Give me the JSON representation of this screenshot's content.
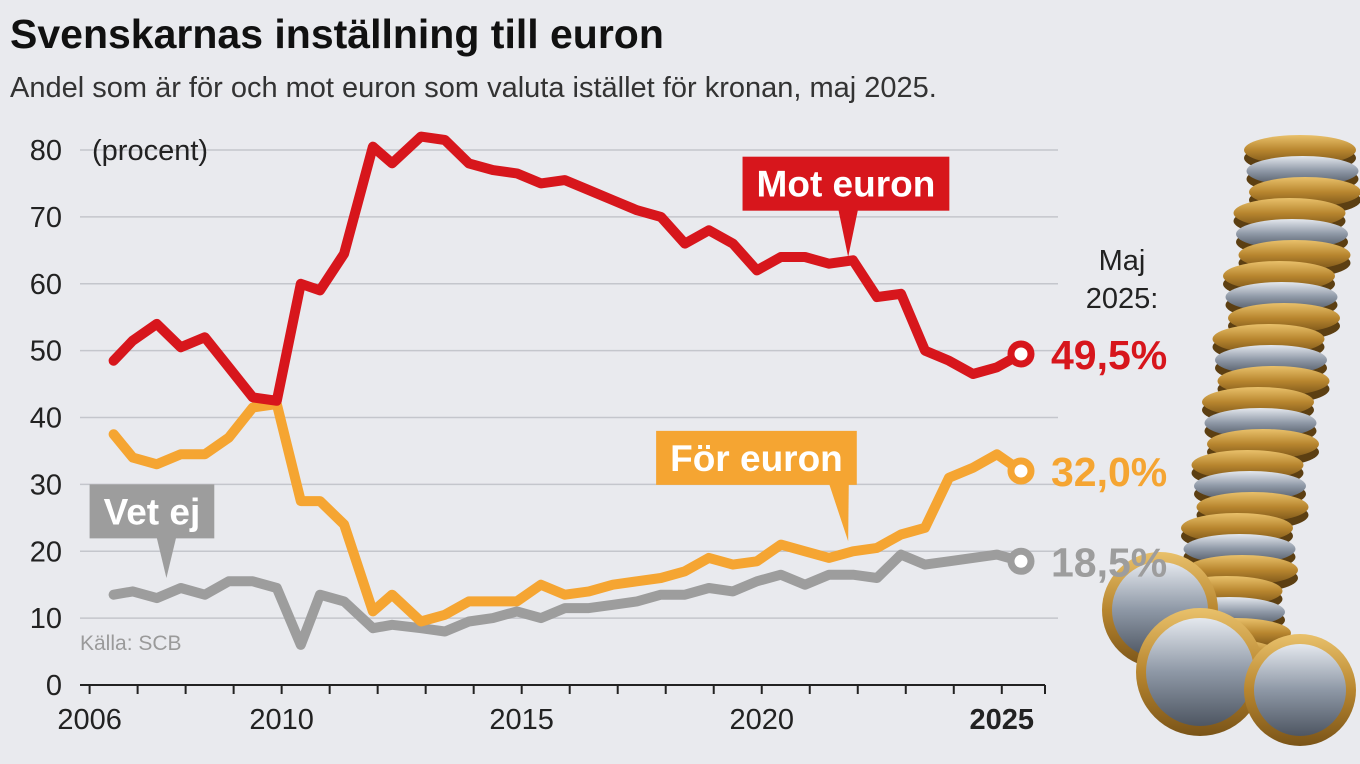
{
  "colors": {
    "mot": "#d7161c",
    "for": "#f5a532",
    "vet": "#9d9d9d",
    "background": "#e9eaee"
  },
  "maj_label": [
    "Maj",
    "2025:"
  ],
  "icons": {
    "decoration": "euro-coin-stack-icon"
  },
  "chart_data": {
    "type": "line",
    "title": "Svenskarnas inställning till euron",
    "subtitle": "Andel som är för och mot euron som valuta istället för kronan, maj 2025.",
    "ylabel": "(procent)",
    "source": "Källa: SCB",
    "ylim": [
      0,
      80
    ],
    "xlim": [
      2005.8,
      2025.9
    ],
    "yticks": [
      0,
      10,
      20,
      30,
      40,
      50,
      60,
      70,
      80
    ],
    "xticks": [
      {
        "value": 2006,
        "label": "2006",
        "bold": false
      },
      {
        "value": 2010,
        "label": "2010",
        "bold": false
      },
      {
        "value": 2015,
        "label": "2015",
        "bold": false
      },
      {
        "value": 2020,
        "label": "2020",
        "bold": false
      },
      {
        "value": 2025,
        "label": "2025",
        "bold": true
      }
    ],
    "minor_xticks": [
      2006,
      2007,
      2008,
      2009,
      2010,
      2011,
      2012,
      2013,
      2014,
      2015,
      2016,
      2017,
      2018,
      2019,
      2020,
      2021,
      2022,
      2023,
      2024,
      2025,
      2025.9
    ],
    "series": [
      {
        "name": "Mot euron",
        "key": "mot",
        "end_label": "49,5%",
        "x": [
          2006.5,
          2006.9,
          2007.4,
          2007.9,
          2008.4,
          2008.9,
          2009.4,
          2009.9,
          2010.4,
          2010.8,
          2011.3,
          2011.9,
          2012.3,
          2012.9,
          2013.4,
          2013.9,
          2014.4,
          2014.9,
          2015.4,
          2015.9,
          2016.4,
          2016.9,
          2017.4,
          2017.9,
          2018.4,
          2018.9,
          2019.4,
          2019.9,
          2020.4,
          2020.9,
          2021.4,
          2021.9,
          2022.4,
          2022.9,
          2023.4,
          2023.9,
          2024.4,
          2024.9,
          2025.4
        ],
        "values": [
          48.5,
          51.5,
          54,
          50.5,
          52,
          47.5,
          43,
          42.5,
          60,
          59,
          64.5,
          80.5,
          78,
          82,
          81.5,
          78,
          77,
          76.5,
          75,
          75.5,
          74,
          72.5,
          71,
          70,
          66,
          68,
          66,
          62,
          64,
          64,
          63,
          63.5,
          58,
          58.5,
          50,
          48.5,
          46.5,
          47.5,
          49.5
        ]
      },
      {
        "name": "För euron",
        "key": "for",
        "end_label": "32,0%",
        "x": [
          2006.5,
          2006.9,
          2007.4,
          2007.9,
          2008.4,
          2008.9,
          2009.4,
          2009.9,
          2010.4,
          2010.8,
          2011.3,
          2011.9,
          2012.3,
          2012.9,
          2013.4,
          2013.9,
          2014.4,
          2014.9,
          2015.4,
          2015.9,
          2016.4,
          2016.9,
          2017.4,
          2017.9,
          2018.4,
          2018.9,
          2019.4,
          2019.9,
          2020.4,
          2020.9,
          2021.4,
          2021.9,
          2022.4,
          2022.9,
          2023.4,
          2023.9,
          2024.4,
          2024.9,
          2025.4
        ],
        "values": [
          37.5,
          34,
          33,
          34.5,
          34.5,
          37,
          41.5,
          42,
          27.5,
          27.5,
          24,
          11,
          13.5,
          9.5,
          10.5,
          12.5,
          12.5,
          12.5,
          15,
          13.5,
          14,
          15,
          15.5,
          16,
          17,
          19,
          18,
          18.5,
          21,
          20,
          19,
          20,
          20.5,
          22.5,
          23.5,
          31,
          32.5,
          34.5,
          32
        ]
      },
      {
        "name": "Vet ej",
        "key": "vet",
        "end_label": "18,5%",
        "x": [
          2006.5,
          2006.9,
          2007.4,
          2007.9,
          2008.4,
          2008.9,
          2009.4,
          2009.9,
          2010.4,
          2010.8,
          2011.3,
          2011.9,
          2012.3,
          2012.9,
          2013.4,
          2013.9,
          2014.4,
          2014.9,
          2015.4,
          2015.9,
          2016.4,
          2016.9,
          2017.4,
          2017.9,
          2018.4,
          2018.9,
          2019.4,
          2019.9,
          2020.4,
          2020.9,
          2021.4,
          2021.9,
          2022.4,
          2022.9,
          2023.4,
          2023.9,
          2024.4,
          2024.9,
          2025.4
        ],
        "values": [
          13.5,
          14,
          13,
          14.5,
          13.5,
          15.5,
          15.5,
          14.5,
          6,
          13.5,
          12.5,
          8.5,
          9,
          8.5,
          8,
          9.5,
          10,
          11,
          10,
          11.5,
          11.5,
          12,
          12.5,
          13.5,
          13.5,
          14.5,
          14,
          15.5,
          16.5,
          15,
          16.5,
          16.5,
          16,
          19.5,
          18,
          18.5,
          19,
          19.5,
          18.5
        ]
      }
    ],
    "callouts": [
      {
        "series": "mot",
        "label": "Mot euron",
        "point_x": 2021.8,
        "point_y": 64,
        "anchor_x": 2019.6,
        "anchor_y": 79
      },
      {
        "series": "for",
        "label": "För euron",
        "point_x": 2021.8,
        "point_y": 21.5,
        "anchor_x": 2017.8,
        "anchor_y": 38
      },
      {
        "series": "vet",
        "label": "Vet ej",
        "point_x": 2007.6,
        "point_y": 16,
        "anchor_x": 2006.0,
        "anchor_y": 30
      }
    ]
  }
}
